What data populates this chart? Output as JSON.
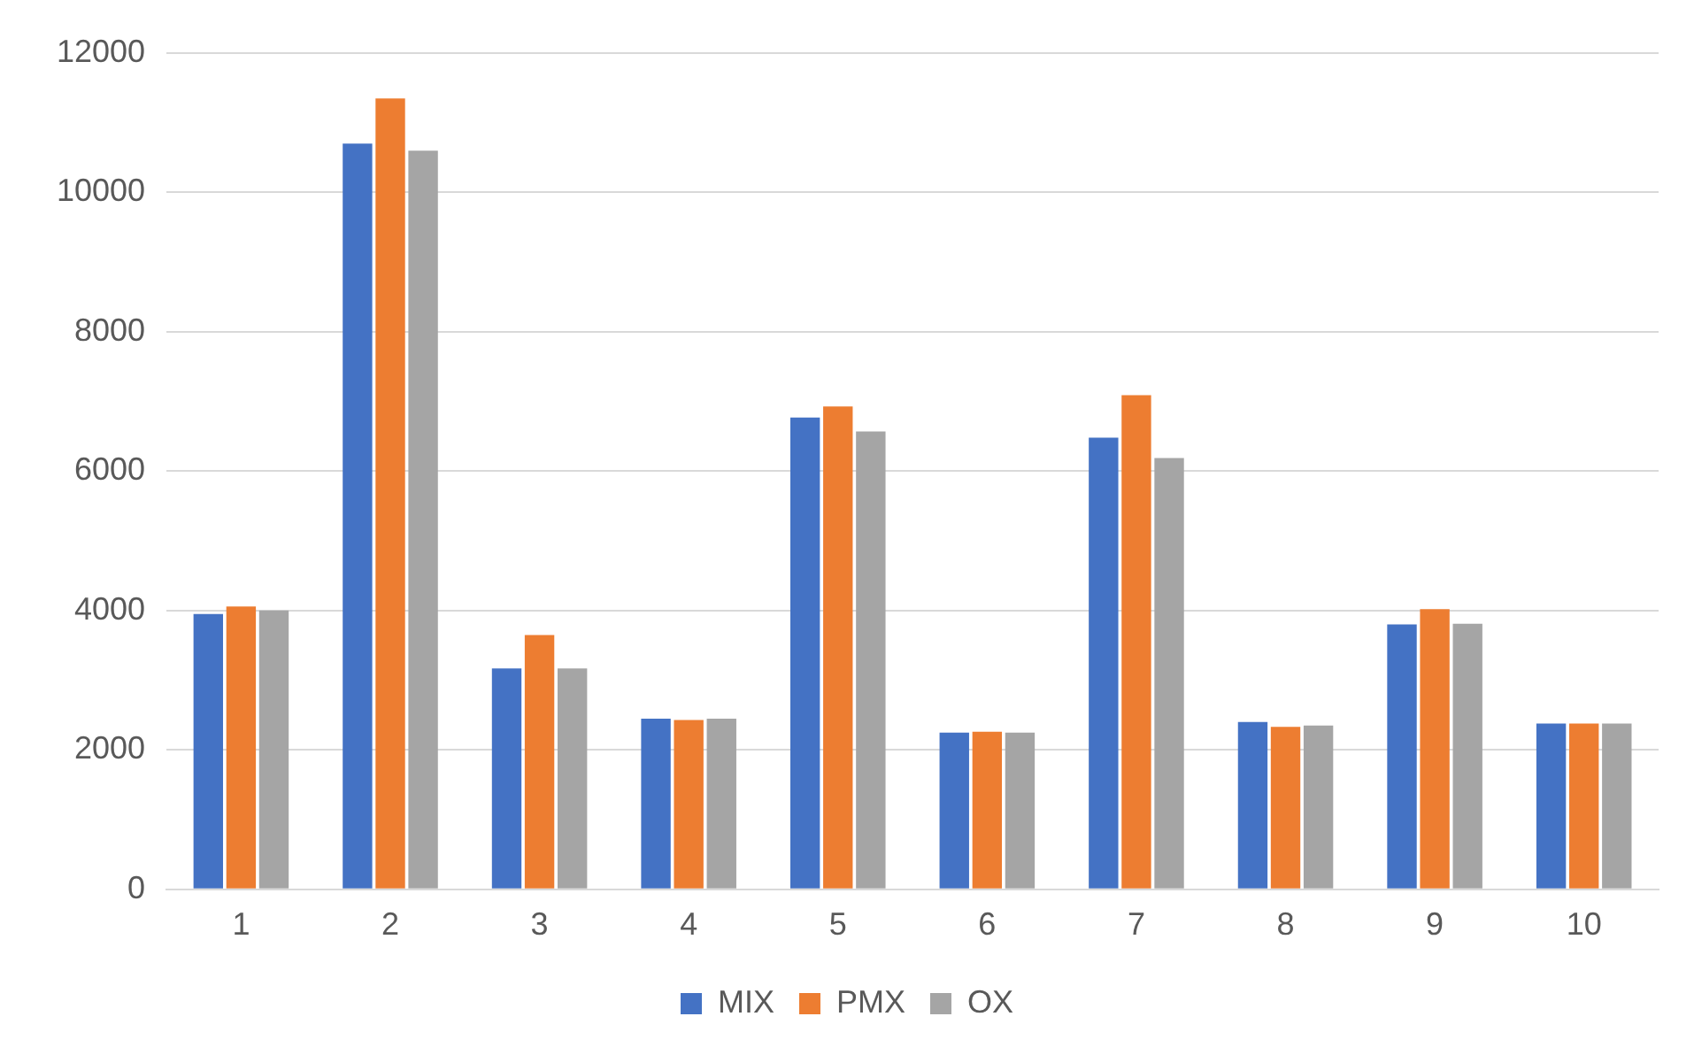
{
  "chart_data": {
    "type": "bar",
    "categories": [
      "1",
      "2",
      "3",
      "4",
      "5",
      "6",
      "7",
      "8",
      "9",
      "10"
    ],
    "series": [
      {
        "name": "MIX",
        "color": "#4472c4",
        "values": [
          3950,
          10700,
          3170,
          2450,
          6770,
          2250,
          6480,
          2400,
          3800,
          2380
        ]
      },
      {
        "name": "PMX",
        "color": "#ed7d31",
        "values": [
          4060,
          11350,
          3650,
          2430,
          6930,
          2260,
          7090,
          2330,
          4020,
          2380
        ]
      },
      {
        "name": "OX",
        "color": "#a5a5a5",
        "values": [
          4000,
          10600,
          3170,
          2450,
          6570,
          2250,
          6190,
          2350,
          3810,
          2380
        ]
      }
    ],
    "ylim": [
      0,
      12000
    ],
    "yticks": [
      0,
      2000,
      4000,
      6000,
      8000,
      10000,
      12000
    ],
    "grid": "y",
    "legend": "bottom"
  }
}
